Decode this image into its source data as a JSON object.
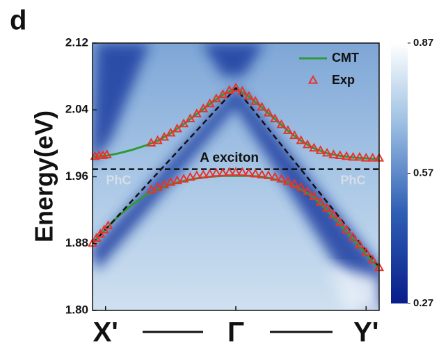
{
  "panel_label": "d",
  "chart_data": {
    "type": "line",
    "y_label": "Energy(eV)",
    "xlim": [
      -1.1,
      1.1
    ],
    "xticks": [
      {
        "value": -1,
        "label": "X'"
      },
      {
        "value": 0,
        "label": "Γ"
      },
      {
        "value": 1,
        "label": "Y'"
      }
    ],
    "ylim": [
      1.8,
      2.12
    ],
    "yticks": [
      {
        "value": 2.12,
        "label": "2.12"
      },
      {
        "value": 2.04,
        "label": "2.04"
      },
      {
        "value": 1.96,
        "label": "1.96"
      },
      {
        "value": 1.88,
        "label": "1.88"
      },
      {
        "value": 1.8,
        "label": "1.80"
      }
    ],
    "legend": "upper right",
    "series": [
      {
        "name": "CMT",
        "color": "#2e9a3a",
        "style": "line",
        "x": [
          -1.1,
          -1.0,
          -0.9,
          -0.8,
          -0.7,
          -0.6,
          -0.5,
          -0.4,
          -0.3,
          -0.2,
          -0.1,
          0,
          0.1,
          0.2,
          0.3,
          0.4,
          0.5,
          0.6,
          0.7,
          0.8,
          0.9,
          1.0,
          1.1
        ],
        "values": [
          1.984,
          1.985,
          1.988,
          1.992,
          1.997,
          2.003,
          2.012,
          2.023,
          2.035,
          2.047,
          2.058,
          2.066,
          2.056,
          2.043,
          2.029,
          2.015,
          2.003,
          1.994,
          1.988,
          1.985,
          1.983,
          1.982,
          1.981
        ]
      },
      {
        "color": "#2e9a3a",
        "style": "line",
        "x": [
          -1.1,
          -1.0,
          -0.9,
          -0.8,
          -0.7,
          -0.6,
          -0.5,
          -0.4,
          -0.3,
          -0.2,
          -0.1,
          0,
          0.1,
          0.2,
          0.3,
          0.4,
          0.5,
          0.6,
          0.7,
          0.8,
          0.9,
          1.0,
          1.1
        ],
        "values": [
          1.88,
          1.897,
          1.913,
          1.926,
          1.937,
          1.945,
          1.951,
          1.955,
          1.958,
          1.96,
          1.961,
          1.961,
          1.961,
          1.96,
          1.957,
          1.952,
          1.945,
          1.935,
          1.92,
          1.903,
          1.885,
          1.867,
          1.85
        ]
      },
      {
        "name": "Exp",
        "color": "#e8322a",
        "style": "marker",
        "x": [
          -1.08,
          -1.05,
          -1.02,
          -0.99,
          -0.65,
          -0.6,
          -0.55,
          -0.5,
          -0.45,
          -0.4,
          -0.35,
          -0.3,
          -0.25,
          -0.2,
          -0.15,
          -0.1,
          -0.05,
          0,
          0.05,
          0.1,
          0.15,
          0.2,
          0.25,
          0.3,
          0.35,
          0.4,
          0.45,
          0.5,
          0.55,
          0.6,
          0.65,
          0.7,
          0.75,
          0.8,
          0.85,
          0.9,
          0.95,
          1.0,
          1.05,
          1.1
        ],
        "values": [
          1.984,
          1.985,
          1.985,
          1.986,
          2.0,
          2.003,
          2.007,
          2.012,
          2.017,
          2.023,
          2.029,
          2.035,
          2.041,
          2.047,
          2.053,
          2.058,
          2.063,
          2.066,
          2.062,
          2.056,
          2.05,
          2.043,
          2.036,
          2.029,
          2.022,
          2.015,
          2.009,
          2.003,
          1.998,
          1.994,
          1.991,
          1.988,
          1.986,
          1.985,
          1.984,
          1.983,
          1.983,
          1.982,
          1.982,
          1.982
        ]
      },
      {
        "color": "#e8322a",
        "style": "marker",
        "x": [
          -1.1,
          -1.07,
          -1.04,
          -1.01,
          -0.98,
          -0.65,
          -0.6,
          -0.55,
          -0.5,
          -0.45,
          -0.4,
          -0.35,
          -0.3,
          -0.25,
          -0.2,
          -0.15,
          -0.1,
          -0.05,
          0,
          0.05,
          0.1,
          0.15,
          0.2,
          0.25,
          0.3,
          0.35,
          0.4,
          0.45,
          0.5,
          0.55,
          0.6,
          0.65,
          0.7,
          0.75,
          0.8,
          0.85,
          0.9,
          0.95,
          1.0,
          1.05,
          1.1
        ],
        "values": [
          1.88,
          1.886,
          1.891,
          1.896,
          1.901,
          1.944,
          1.947,
          1.95,
          1.953,
          1.955,
          1.957,
          1.959,
          1.961,
          1.962,
          1.963,
          1.964,
          1.964,
          1.965,
          1.965,
          1.965,
          1.964,
          1.963,
          1.962,
          1.961,
          1.959,
          1.957,
          1.954,
          1.951,
          1.947,
          1.942,
          1.936,
          1.929,
          1.922,
          1.914,
          1.905,
          1.896,
          1.887,
          1.878,
          1.869,
          1.86,
          1.851
        ]
      },
      {
        "color": "#111111",
        "style": "dashed",
        "x": [
          -1.1,
          0,
          1.1
        ],
        "values": [
          1.88,
          2.066,
          1.852
        ]
      },
      {
        "color": "#111111",
        "style": "dashed",
        "x": [
          -1.1,
          1.1
        ],
        "values": [
          1.969,
          1.969
        ]
      }
    ],
    "annotations": [
      {
        "text": "A exciton",
        "x": -0.05,
        "y": 1.982
      },
      {
        "text": "PhC",
        "x": -0.9,
        "y": 1.955
      },
      {
        "text": "PhC",
        "x": 0.9,
        "y": 1.955
      }
    ],
    "colorbar": {
      "lim": [
        0.27,
        0.87
      ],
      "ticks": [
        0.87,
        0.57,
        0.27
      ]
    }
  }
}
